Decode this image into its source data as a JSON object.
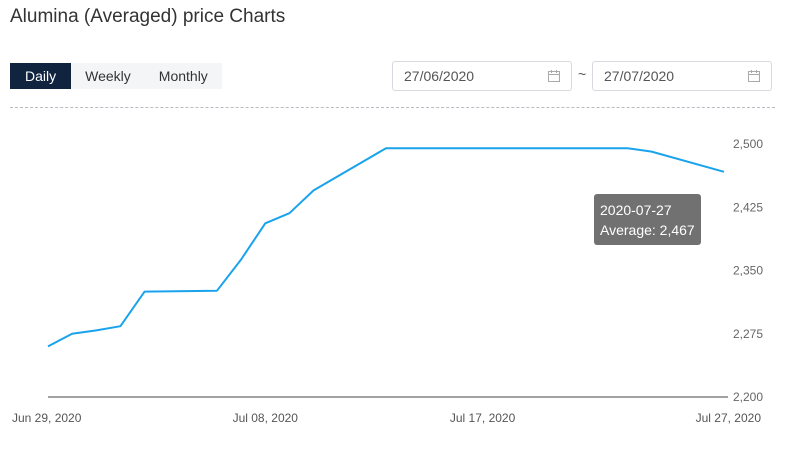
{
  "page": {
    "title": "Alumina (Averaged) price Charts"
  },
  "tabs": [
    {
      "label": "Daily",
      "active": true
    },
    {
      "label": "Weekly",
      "active": false
    },
    {
      "label": "Monthly",
      "active": false
    }
  ],
  "date_range": {
    "start": "27/06/2020",
    "separator": "~",
    "end": "27/07/2020",
    "icon": "calendar-icon"
  },
  "tooltip": {
    "date": "2020-07-27",
    "text": "Average: 2,467"
  },
  "colors": {
    "line": "#1aa3ec",
    "active_tab": "#10233f"
  },
  "chart_data": {
    "type": "line",
    "title": "Alumina (Averaged) price Charts",
    "x": [
      "2020-06-29",
      "2020-06-30",
      "2020-07-01",
      "2020-07-02",
      "2020-07-03",
      "2020-07-06",
      "2020-07-07",
      "2020-07-08",
      "2020-07-09",
      "2020-07-10",
      "2020-07-13",
      "2020-07-14",
      "2020-07-15",
      "2020-07-16",
      "2020-07-17",
      "2020-07-20",
      "2020-07-21",
      "2020-07-22",
      "2020-07-23",
      "2020-07-24",
      "2020-07-27"
    ],
    "x_tick_labels": [
      "Jun 29, 2020",
      "Jul 08, 2020",
      "Jul 17, 2020",
      "Jul 27, 2020"
    ],
    "x_tick_dates": [
      "2020-06-29",
      "2020-07-08",
      "2020-07-17",
      "2020-07-27"
    ],
    "series": [
      {
        "values": [
          2260,
          2275,
          2279,
          2284,
          2325,
          2326,
          2363,
          2406,
          2418,
          2445,
          2495,
          2495,
          2495,
          2495,
          2495,
          2495,
          2495,
          2495,
          2495,
          2491,
          2467
        ]
      }
    ],
    "y_ticks": [
      "2,500",
      "2,425",
      "2,350",
      "2,275",
      "2,200"
    ],
    "y_tick_values": [
      2500,
      2425,
      2350,
      2275,
      2200
    ],
    "ylim": [
      2200,
      2500
    ],
    "xlabel": "",
    "ylabel": "",
    "grid": false,
    "axis_position": "right"
  }
}
